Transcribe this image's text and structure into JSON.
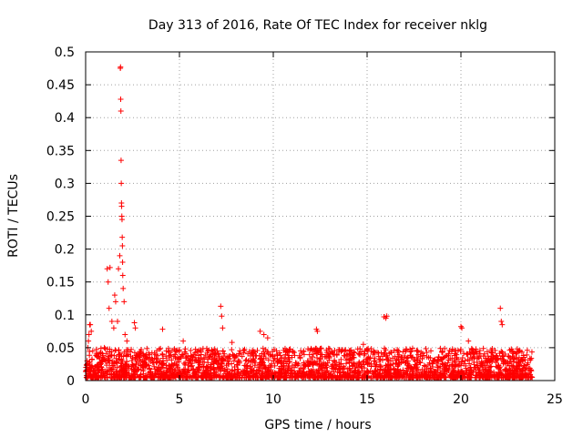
{
  "chart_data": {
    "type": "scatter",
    "title": "Day 313 of 2016, Rate Of TEC Index for receiver nklg",
    "xlabel": "GPS time / hours",
    "ylabel": "ROTI / TECUs",
    "xlim": [
      0,
      25
    ],
    "ylim": [
      0,
      0.5
    ],
    "xticks": [
      "0",
      "5",
      "10",
      "15",
      "20",
      "25"
    ],
    "yticks": [
      "0",
      "0.05",
      "0.1",
      "0.15",
      "0.2",
      "0.25",
      "0.3",
      "0.35",
      "0.4",
      "0.45",
      "0.5"
    ],
    "grid": true,
    "marker": "+",
    "series": [
      {
        "name": "ROTI",
        "color": "#ff0000",
        "x": [
          0.02,
          0.08,
          0.15,
          0.22,
          0.3,
          0.38,
          0.12,
          0.18,
          0.25,
          0.6,
          1.0,
          1.15,
          1.2,
          1.25,
          1.3,
          1.4,
          1.5,
          1.55,
          1.6,
          1.7,
          1.75,
          1.82,
          1.85,
          1.86,
          1.87,
          1.88,
          1.89,
          1.9,
          1.91,
          1.92,
          1.93,
          1.94,
          1.95,
          1.96,
          1.97,
          1.98,
          2.0,
          2.05,
          2.1,
          2.2,
          2.6,
          2.65,
          4.1,
          4.3,
          5.2,
          7.2,
          7.25,
          7.3,
          7.8,
          9.3,
          9.5,
          9.7,
          10.9,
          12.3,
          12.35,
          13.8,
          14.8,
          15.9,
          16.0,
          16.05,
          20.0,
          20.05,
          20.4,
          20.8,
          22.1,
          22.15,
          22.2
        ],
        "y": [
          0.02,
          0.03,
          0.06,
          0.085,
          0.075,
          0.045,
          0.05,
          0.07,
          0.085,
          0.04,
          0.05,
          0.17,
          0.15,
          0.11,
          0.172,
          0.09,
          0.08,
          0.13,
          0.12,
          0.09,
          0.17,
          0.19,
          0.475,
          0.477,
          0.428,
          0.41,
          0.335,
          0.3,
          0.27,
          0.265,
          0.25,
          0.245,
          0.218,
          0.205,
          0.18,
          0.16,
          0.14,
          0.12,
          0.07,
          0.06,
          0.088,
          0.08,
          0.078,
          0.045,
          0.06,
          0.113,
          0.098,
          0.08,
          0.058,
          0.075,
          0.07,
          0.065,
          0.048,
          0.078,
          0.075,
          0.045,
          0.055,
          0.097,
          0.095,
          0.098,
          0.082,
          0.08,
          0.06,
          0.048,
          0.11,
          0.09,
          0.085
        ],
        "noise": {
          "x_range": [
            0.0,
            23.8
          ],
          "y_min": 0.0,
          "y_typical_max": 0.045,
          "count": 2600,
          "note": "dense band of low ROTI values across the whole day"
        }
      }
    ]
  }
}
